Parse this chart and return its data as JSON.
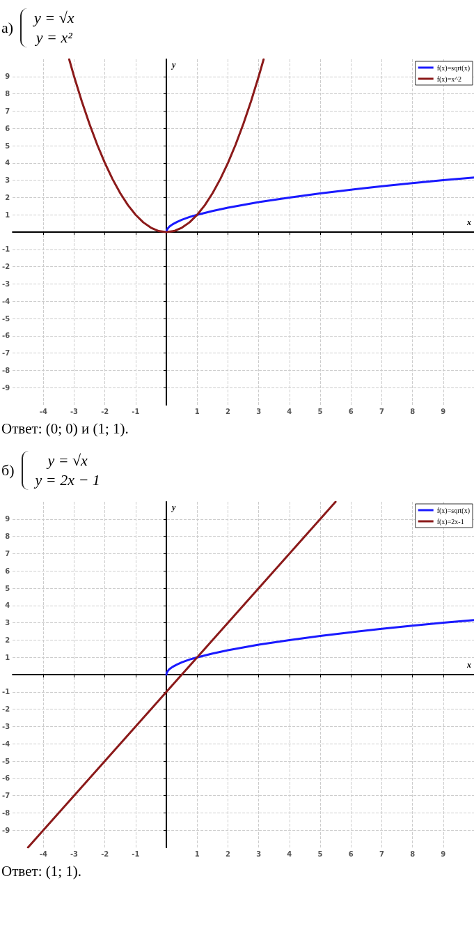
{
  "chart_data": [
    {
      "type": "line",
      "title": "а)",
      "subtitle": "y = √x\ny = x²",
      "xlabel": "x",
      "ylabel": "y",
      "xlim": [
        -5,
        10
      ],
      "ylim": [
        -10,
        10
      ],
      "xticks": [
        -4,
        -3,
        -2,
        -1,
        1,
        2,
        3,
        4,
        5,
        6,
        7,
        8,
        9
      ],
      "yticks": [
        -9,
        -8,
        -7,
        -6,
        -5,
        -4,
        -3,
        -2,
        -1,
        1,
        2,
        3,
        4,
        5,
        6,
        7,
        8,
        9
      ],
      "grid": true,
      "legend": "top right",
      "marker": "none",
      "line_style": "solid",
      "series": [
        {
          "name": "f(x)=sqrt(x)",
          "color": "#1a1aff",
          "x": [
            0,
            0.01,
            0.05,
            0.1,
            0.2,
            0.35,
            0.5,
            0.75,
            1,
            1.5,
            2,
            3,
            4,
            5,
            6,
            7,
            8,
            9,
            10
          ],
          "values": [
            0,
            0.1,
            0.22,
            0.32,
            0.45,
            0.59,
            0.71,
            0.87,
            1,
            1.22,
            1.41,
            1.73,
            2,
            2.24,
            2.45,
            2.65,
            2.83,
            3,
            3.16
          ]
        },
        {
          "name": "f(x)=x^2",
          "color": "#8b1a1a",
          "x": [
            -3.16,
            -3,
            -2.75,
            -2.5,
            -2.25,
            -2,
            -1.75,
            -1.5,
            -1.25,
            -1,
            -0.75,
            -0.5,
            -0.25,
            0,
            0.25,
            0.5,
            0.75,
            1,
            1.25,
            1.5,
            1.75,
            2,
            2.25,
            2.5,
            2.75,
            3,
            3.16
          ],
          "values": [
            9.99,
            9,
            7.56,
            6.25,
            5.06,
            4,
            3.06,
            2.25,
            1.56,
            1,
            0.56,
            0.25,
            0.06,
            0,
            0.06,
            0.25,
            0.56,
            1,
            1.56,
            2.25,
            3.06,
            4,
            5.06,
            6.25,
            7.56,
            9,
            9.99
          ]
        }
      ],
      "annotations": [
        "Ответ: (0; 0) и (1; 1)."
      ]
    },
    {
      "type": "line",
      "title": "б)",
      "subtitle": "y = √x\ny = 2x − 1",
      "xlabel": "x",
      "ylabel": "y",
      "xlim": [
        -5,
        10
      ],
      "ylim": [
        -10,
        10
      ],
      "xticks": [
        -4,
        -3,
        -2,
        -1,
        1,
        2,
        3,
        4,
        5,
        6,
        7,
        8,
        9
      ],
      "yticks": [
        -9,
        -8,
        -7,
        -6,
        -5,
        -4,
        -3,
        -2,
        -1,
        1,
        2,
        3,
        4,
        5,
        6,
        7,
        8,
        9
      ],
      "grid": true,
      "legend": "top right",
      "marker": "none",
      "line_style": "solid",
      "series": [
        {
          "name": "f(x)=sqrt(x)",
          "color": "#1a1aff",
          "x": [
            0,
            0.01,
            0.05,
            0.1,
            0.2,
            0.35,
            0.5,
            0.75,
            1,
            1.5,
            2,
            3,
            4,
            5,
            6,
            7,
            8,
            9,
            10
          ],
          "values": [
            0,
            0.1,
            0.22,
            0.32,
            0.45,
            0.59,
            0.71,
            0.87,
            1,
            1.22,
            1.41,
            1.73,
            2,
            2.24,
            2.45,
            2.65,
            2.83,
            3,
            3.16
          ]
        },
        {
          "name": "f(x)=2x-1",
          "color": "#8b1a1a",
          "x": [
            -4.5,
            0,
            1,
            5.5
          ],
          "values": [
            -10,
            -1,
            1,
            10
          ]
        }
      ],
      "annotations": [
        "Ответ: (1; 1)."
      ]
    }
  ]
}
